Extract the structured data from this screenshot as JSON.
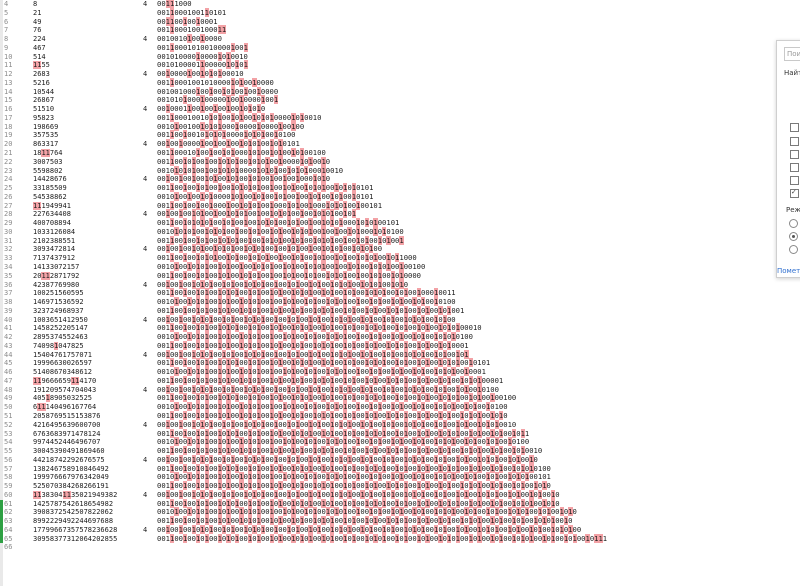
{
  "rows": [
    {
      "n": "4",
      "v": "8",
      "t": "4",
      "b": "00[11]1000"
    },
    {
      "n": "5",
      "v": "21",
      "t": "",
      "b": "001[1]0001001[1]0101"
    },
    {
      "n": "6",
      "v": "49",
      "t": "",
      "b": "00[11]00[1]00[1]0001"
    },
    {
      "n": "7",
      "v": "76",
      "t": "",
      "b": "001[1]0001001000[11]"
    },
    {
      "n": "8",
      "v": "224",
      "t": "4",
      "b": "0010010[1]00[1]0000"
    },
    {
      "n": "9",
      "v": "467",
      "t": "",
      "b": "001[1]0001010010000[1]00[1]"
    },
    {
      "n": "10",
      "v": "514",
      "t": "",
      "b": "001010000[1]0000[1]0[1]0010"
    },
    {
      "n": "11",
      "v": "[11]55",
      "t": "",
      "b": "0010100001[1]00000[1]0[1]0[1]"
    },
    {
      "n": "12",
      "v": "2683",
      "t": "4",
      "b": "00[1]0000[1]00[1]0[1]0[1]00010"
    },
    {
      "n": "13",
      "v": "5216",
      "t": "",
      "b": "001[1]0001001010000[1]0[1]00[1]0000"
    },
    {
      "n": "14",
      "v": "10544",
      "t": "",
      "b": "001001000[1]00[1]00[1]0[1]00[1]00[1]0000"
    },
    {
      "n": "15",
      "v": "26867",
      "t": "",
      "b": "001010[1]000[1]00000[1]00[1]0000[1]00[1]"
    },
    {
      "n": "16",
      "v": "51510",
      "t": "4",
      "b": "00[1]0001[1]00[1]00[1]00[1]00[1]0[1]0[1]0"
    },
    {
      "n": "17",
      "v": "95823",
      "t": "",
      "b": "001[1]00010010[1]0[1]00[1]0[1]00[1]0[1]0[1]0000[1]0[1]0010"
    },
    {
      "n": "18",
      "v": "198669",
      "t": "",
      "b": "0010[1]00100[1]0[1]0[1]000[1]0000[1]0000[1]00[1]00"
    },
    {
      "n": "19",
      "v": "357535",
      "t": "",
      "b": "001[1]00[1]0010[1]0[1]0[1]0000[1]0[1]0[1]00[1]0100"
    },
    {
      "n": "20",
      "v": "863317",
      "t": "4",
      "b": "00[1]00[1]0000[1]00[1]00[1]00[1]0[1]0[1]00[1]0[1]0101"
    },
    {
      "n": "21",
      "v": "18[11]764",
      "t": "",
      "b": "001[1]00010[1]00[1]00[1]0[1]000[1]0[1]00[1]0[1]00[1]0[1]00100"
    },
    {
      "n": "22",
      "v": "3007503",
      "t": "",
      "b": "001[1]00[1]0[1]00[1]00[1]0[1]0[1]00[1]0[1]0[1]00[1]0000[1]0[1]00[1]0"
    },
    {
      "n": "23",
      "v": "5598802",
      "t": "",
      "b": "0010[1]0[1]0[1]00[1]00[1]0[1]0[1]0000[1]0[1]0[1]00[1]0[1]0[1]000[1]0010"
    },
    {
      "n": "24",
      "v": "14428676",
      "t": "4",
      "b": "00[1]00[1]00[1]00[1]0[1]00[1]0[1]00[1]0[1]00[1]00[1]00[1]000[1]0[1]0"
    },
    {
      "n": "25",
      "v": "33185509",
      "t": "",
      "b": "001[1]00[1]00[1]0[1]00[1]00[1]0[1]0[1]0[1]00[1]00[1]0[1]00[1]0[1]0[1]00[1]0[1]0[1]0101"
    },
    {
      "n": "26",
      "v": "54538862",
      "t": "",
      "b": "0010[1]00[1]00[1]0[1]0000[1]0[1]00[1]0[1]00[1]0[1]00[1]00[1]0[1]00[1]0[1]00[1]0101"
    },
    {
      "n": "27",
      "v": "[11]1949941",
      "t": "",
      "b": "001[1]00[1]00[1]00[1]000[1]00[1]0[1]0[1]00[1]000[1]0[1]00[1]000[1]0[1]0[1]00[1]00101"
    },
    {
      "n": "28",
      "v": "227634408",
      "t": "4",
      "b": "00[1]00[1]00[1]0[1]00[1]00[1]0[1]0[1]00[1]00[1]0[1]0[1]00[1]00[1]0[1]0[1]00[1]0[1]"
    },
    {
      "n": "29",
      "v": "400708894",
      "t": "",
      "b": "001[1]00[1]0[1]0[1]0[1]00[1]0[1]00[1]00[1]0[1]0[1]00[1]0[1]00[1]00[1]0[1]0[1]000[1]0[1]0[1]00101"
    },
    {
      "n": "30",
      "v": "1033126084",
      "t": "",
      "b": "0010[1]0[1]0[1]00[1]0[1]0[1]00[1]00[1]0[1]00[1]0[1]00[1]0[1]0[1]00[1]00[1]00[1]0[1]000[1]0[1]0100"
    },
    {
      "n": "31",
      "v": "2102388551",
      "t": "",
      "b": "001[1]00[1]00[1]0[1]00[1]0[1]0[1]00[1]00[1]0[1]0[1]00[1]0[1]00[1]0[1]0[1]00[1]00[1]0[1]00[1]0[1]00[1]"
    },
    {
      "n": "32",
      "v": "3093472814",
      "t": "4",
      "b": "00[1]00[1]00[1]0[1]00[1]0[1]0[1]00[1]0[1]0[1]00[1]00[1]0[1]00[1]00[1]0[1]0[1]00[1]0[1]0[1]00"
    },
    {
      "n": "33",
      "v": "7137437912",
      "t": "",
      "b": "001[1]00[1]00[1]0[1]0[1]00[1]0[1]00[1]0[1]0[1]00[1]00[1]0[1]00[1]0[1]00[1]0[1]00[1]0[1]0[1]00[1]0[1]1000"
    },
    {
      "n": "34",
      "v": "14133072157",
      "t": "",
      "b": "0010[1]00[1]0[1]0[1]00[1]0[1]00[1]00[1]0[1]0[1]00[1]0[1]00[1]0[1]0[1]00[1]00[1]0[1]00[1]0[1]0[1]00[1]00100"
    },
    {
      "n": "35",
      "v": "20[11]2871792",
      "t": "",
      "b": "001[1]00[1]00[1]0[1]00[1]0[1]00[1]0[1]0[1]00[1]00[1]0[1]00[1]0[1]00[1]0[1]0[1]00[1]00[1]0[1]00[1]0[1]0000"
    },
    {
      "n": "36",
      "v": "42387769980",
      "t": "4",
      "b": "00[1]00[1]00[1]0[1]0[1]00[1]0[1]00[1]0[1]0[1]00[1]00[1]0[1]00[1]0[1]00[1]0[1]0[1]00[1]0[1]0[1]00[1]0[1]0"
    },
    {
      "n": "37",
      "v": "100251560595",
      "t": "",
      "b": "001[1]00[1]00[1]0[1]00[1]0[1]0[1]00[1]0[1]00[1]0[1]00[1]0[1]0[1]00[1]0[1]00[1]0[1]00[1]0[1]0[1]00[1]0[1]00[1]000[1]0011"
    },
    {
      "n": "38",
      "v": "146971536592",
      "t": "",
      "b": "0010[1]00[1]0[1]0[1]00[1]0[1]00[1]0[1]0[1]00[1]00[1]0[1]00[1]0[1]00[1]0[1]0[1]00[1]00[1]0[1]00[1]0[1]00[1]0[1]00[1]0100"
    },
    {
      "n": "39",
      "v": "323724968937",
      "t": "",
      "b": "001[1]00[1]00[1]0[1]00[1]0[1]00[1]0[1]0[1]00[1]0[1]00[1]0[1]00[1]0[1]0[1]00[1]0[1]00[1]0[1]00[1]0[1]0[1]00[1]0[1]00[1]0[1]001"
    },
    {
      "n": "40",
      "v": "1003651412950",
      "t": "4",
      "b": "00[1]00[1]00[1]0[1]0[1]00[1]0[1]00[1]0[1]0[1]00[1]00[1]0[1]00[1]0[1]00[1]0[1]0[1]00[1]0[1]00[1]0[1]00[1]0[1]0[1]00[1]0[1]00"
    },
    {
      "n": "41",
      "v": "1458252205147",
      "t": "",
      "b": "001[1]00[1]00[1]0[1]00[1]0[1]0[1]00[1]0[1]00[1]0[1]00[1]0[1]0[1]00[1]0[1]00[1]0[1]00[1]0[1]0[1]00[1]0[1]00[1]0[1]00[1]0[1]0[1]00010"
    },
    {
      "n": "42",
      "v": "2895374552463",
      "t": "",
      "b": "0010[1]00[1]0[1]0[1]00[1]0[1]00[1]0[1]0[1]00[1]00[1]0[1]00[1]0[1]00[1]0[1]0[1]00[1]00[1]0[1]00[1]0[1]00[1]0[1]00[1]0[1]0[1]0100"
    },
    {
      "n": "43",
      "v": "74098[1]047825",
      "t": "",
      "b": "001[1]00[1]00[1]0[1]00[1]0[1]00[1]0[1]0[1]00[1]0[1]00[1]0[1]00[1]0[1]0[1]00[1]0[1]00[1]0[1]00[1]0[1]0[1]00[1]0[1]00[1]0[1]0001"
    },
    {
      "n": "44",
      "v": "15404761757071",
      "t": "4",
      "b": "00[1]00[1]00[1]0[1]0[1]00[1]0[1]00[1]0[1]0[1]00[1]00[1]0[1]00[1]0[1]00[1]0[1]0[1]00[1]0[1]00[1]0[1]00[1]0[1]0[1]00[1]0[1]00[1]0[1]"
    },
    {
      "n": "45",
      "v": "19996630026597",
      "t": "",
      "b": "001[1]00[1]00[1]0[1]00[1]0[1]0[1]00[1]0[1]00[1]0[1]00[1]0[1]0[1]00[1]0[1]00[1]0[1]00[1]0[1]0[1]00[1]0[1]00[1]0[1]00[1]0[1]0[1]00[1]0101"
    },
    {
      "n": "46",
      "v": "51408670348612",
      "t": "",
      "b": "0010[1]00[1]0[1]0[1]00[1]0[1]00[1]0[1]0[1]00[1]00[1]0[1]00[1]0[1]00[1]0[1]0[1]00[1]00[1]0[1]00[1]0[1]00[1]0[1]00[1]0[1]0[1]00[1]0001"
    },
    {
      "n": "47",
      "v": "[11]9666659[11]4170",
      "t": "",
      "b": "001[1]00[1]00[1]0[1]00[1]0[1]00[1]0[1]0[1]00[1]0[1]00[1]0[1]00[1]0[1]0[1]00[1]0[1]00[1]0[1]00[1]0[1]0[1]00[1]0[1]00[1]0[1]00[1]0[1]0[1]00001"
    },
    {
      "n": "48",
      "v": "191209574704043",
      "t": "4",
      "b": "00[1]00[1]00[1]0[1]0[1]00[1]0[1]00[1]0[1]0[1]00[1]00[1]0[1]00[1]0[1]00[1]0[1]0[1]00[1]0[1]00[1]0[1]00[1]0[1]0[1]00[1]0[1]00[1]0[1]00[1]0100"
    },
    {
      "n": "49",
      "v": "405[1]8905032525",
      "t": "",
      "b": "001[1]00[1]00[1]0[1]00[1]0[1]0[1]00[1]0[1]00[1]0[1]00[1]0[1]0[1]00[1]0[1]00[1]0[1]00[1]0[1]0[1]00[1]0[1]00[1]0[1]00[1]0[1]0[1]00[1]0[1]00[1]00100"
    },
    {
      "n": "50",
      "v": "6[11]140496167764",
      "t": "",
      "b": "0010[1]00[1]0[1]0[1]00[1]0[1]00[1]0[1]0[1]00[1]00[1]0[1]00[1]0[1]00[1]0[1]0[1]00[1]00[1]0[1]00[1]0[1]00[1]0[1]00[1]0[1]0[1]00[1]0[1]00[1]0100"
    },
    {
      "n": "51",
      "v": "2058769515153876",
      "t": "",
      "b": "001[1]00[1]00[1]0[1]00[1]0[1]00[1]0[1]0[1]00[1]0[1]00[1]0[1]00[1]0[1]0[1]00[1]0[1]00[1]0[1]00[1]0[1]0[1]00[1]0[1]00[1]0[1]00[1]0[1]0[1]00[1]0[1]0"
    },
    {
      "n": "52",
      "v": "4216495639600700",
      "t": "4",
      "b": "00[1]00[1]00[1]0[1]0[1]00[1]0[1]00[1]0[1]0[1]00[1]00[1]0[1]00[1]0[1]00[1]0[1]0[1]00[1]0[1]00[1]0[1]00[1]0[1]0[1]00[1]0[1]00[1]0[1]00[1]0[1]0[1]0010"
    },
    {
      "n": "53",
      "v": "6763683971478124",
      "t": "",
      "b": "001[1]00[1]00[1]0[1]00[1]0[1]0[1]00[1]0[1]00[1]0[1]00[1]0[1]0[1]00[1]0[1]00[1]0[1]00[1]0[1]0[1]00[1]0[1]00[1]0[1]00[1]0[1]0[1]00[1]0[1]00[1]0[1]00[1]0[1]1"
    },
    {
      "n": "54",
      "v": "9974452446496707",
      "t": "",
      "b": "0010[1]00[1]0[1]0[1]00[1]0[1]00[1]0[1]0[1]00[1]00[1]0[1]00[1]0[1]00[1]0[1]0[1]00[1]00[1]0[1]00[1]0[1]00[1]0[1]00[1]0[1]0[1]00[1]0[1]00[1]0[1]00[1]0100"
    },
    {
      "n": "55",
      "v": "30045390491869460",
      "t": "",
      "b": "001[1]00[1]00[1]0[1]00[1]0[1]00[1]0[1]0[1]00[1]0[1]00[1]0[1]00[1]0[1]0[1]00[1]0[1]00[1]0[1]00[1]0[1]0[1]00[1]0[1]00[1]0[1]00[1]0[1]0[1]00[1]0[1]00[1]0[1]0010"
    },
    {
      "n": "56",
      "v": "44218742292676575",
      "t": "4",
      "b": "00[1]00[1]00[1]0[1]0[1]00[1]0[1]00[1]0[1]0[1]00[1]00[1]0[1]00[1]0[1]00[1]0[1]0[1]00[1]0[1]00[1]0[1]00[1]0[1]0[1]00[1]0[1]00[1]0[1]00[1]0[1]0[1]00[1]0[1]00[1]0"
    },
    {
      "n": "57",
      "v": "138246758910846492",
      "t": "",
      "b": "001[1]00[1]00[1]0[1]00[1]0[1]0[1]00[1]0[1]00[1]0[1]00[1]0[1]0[1]00[1]0[1]00[1]0[1]00[1]0[1]0[1]00[1]0[1]00[1]0[1]00[1]0[1]0[1]00[1]0[1]00[1]0[1]00[1]0[1]0[1]0100"
    },
    {
      "n": "58",
      "v": "199976667976342049",
      "t": "",
      "b": "0010[1]00[1]0[1]0[1]00[1]0[1]00[1]0[1]0[1]00[1]00[1]0[1]00[1]0[1]00[1]0[1]0[1]00[1]00[1]0[1]00[1]0[1]00[1]0[1]00[1]0[1]0[1]00[1]0[1]00[1]0[1]00[1]0[1]0[1]00101"
    },
    {
      "n": "59",
      "v": "525070384268266191",
      "t": "",
      "b": "001[1]00[1]00[1]0[1]00[1]0[1]00[1]0[1]0[1]00[1]0[1]00[1]0[1]00[1]0[1]0[1]00[1]0[1]00[1]0[1]00[1]0[1]0[1]00[1]0[1]00[1]0[1]00[1]0[1]0[1]00[1]0[1]00[1]0[1]00[1]0[1]0"
    },
    {
      "n": "60",
      "v": "[11]38304[11]35021949382",
      "t": "4",
      "b": "00[1]00[1]00[1]0[1]0[1]00[1]0[1]00[1]0[1]0[1]00[1]00[1]0[1]00[1]0[1]00[1]0[1]0[1]00[1]0[1]00[1]0[1]00[1]0[1]0[1]00[1]0[1]00[1]0[1]00[1]0[1]0[1]00[1]0[1]00[1]0[1]00[1]0"
    },
    {
      "n": "61",
      "v": "1425787542618654982",
      "t": "",
      "b": "001[1]00[1]00[1]0[1]00[1]0[1]0[1]00[1]0[1]00[1]0[1]00[1]0[1]0[1]00[1]0[1]00[1]0[1]00[1]0[1]0[1]00[1]0[1]00[1]0[1]00[1]0[1]0[1]00[1]0[1]00[1]0[1]00[1]0[1]0[1]00[1]0[1]0"
    },
    {
      "n": "62",
      "v": "3908372542507822062",
      "t": "",
      "b": "0010[1]00[1]0[1]0[1]00[1]0[1]00[1]0[1]0[1]00[1]00[1]0[1]00[1]0[1]00[1]0[1]0[1]00[1]00[1]0[1]00[1]0[1]00[1]0[1]00[1]0[1]0[1]00[1]0[1]00[1]0[1]00[1]0[1]0[1]00[1]0[1]00[1]0[1]0"
    },
    {
      "n": "63",
      "v": "8992229492244697688",
      "t": "",
      "b": "001[1]00[1]00[1]0[1]00[1]0[1]00[1]0[1]0[1]00[1]0[1]00[1]0[1]00[1]0[1]0[1]00[1]0[1]00[1]0[1]00[1]0[1]0[1]00[1]0[1]00[1]0[1]00[1]0[1]0[1]00[1]0[1]00[1]0[1]00[1]0[1]0[1]00[1]0"
    },
    {
      "n": "64",
      "v": "17799667357578236628",
      "t": "4",
      "b": "00[1]00[1]00[1]0[1]0[1]00[1]0[1]00[1]0[1]0[1]00[1]00[1]0[1]00[1]0[1]00[1]0[1]0[1]00[1]0[1]00[1]0[1]00[1]0[1]0[1]00[1]0[1]00[1]0[1]00[1]0[1]0[1]00[1]0[1]00[1]0[1]00[1]0[1]0[1]00"
    },
    {
      "n": "65",
      "v": "30958377312064202855",
      "t": "",
      "b": "001[1]00[1]00[1]0[1]00[1]0[1]0[1]00[1]0[1]00[1]0[1]00[1]0[1]0[1]00[1]0[1]00[1]0[1]00[1]0[1]0[1]00[1]0[1]00[1]0[1]00[1]0[1]0[1]00[1]0[1]00[1]0[1]00[1]0[1]0[1]00[1]0[1]00[1]0[1]00[1]0[11]1"
    },
    {
      "n": "66",
      "v": "",
      "t": "",
      "b": ""
    }
  ],
  "markers": [
    61,
    62,
    63,
    64,
    65
  ],
  "find_panel": {
    "input_text": "Поис",
    "find_label": "Найти",
    "checkboxes": [
      false,
      false,
      false,
      false,
      false,
      true
    ],
    "mode_label": "Реж",
    "radios": [
      false,
      true,
      false
    ],
    "link_text": "Помет"
  },
  "colors": {
    "highlight": "#f3a2a6",
    "marker": "#2ea043"
  }
}
